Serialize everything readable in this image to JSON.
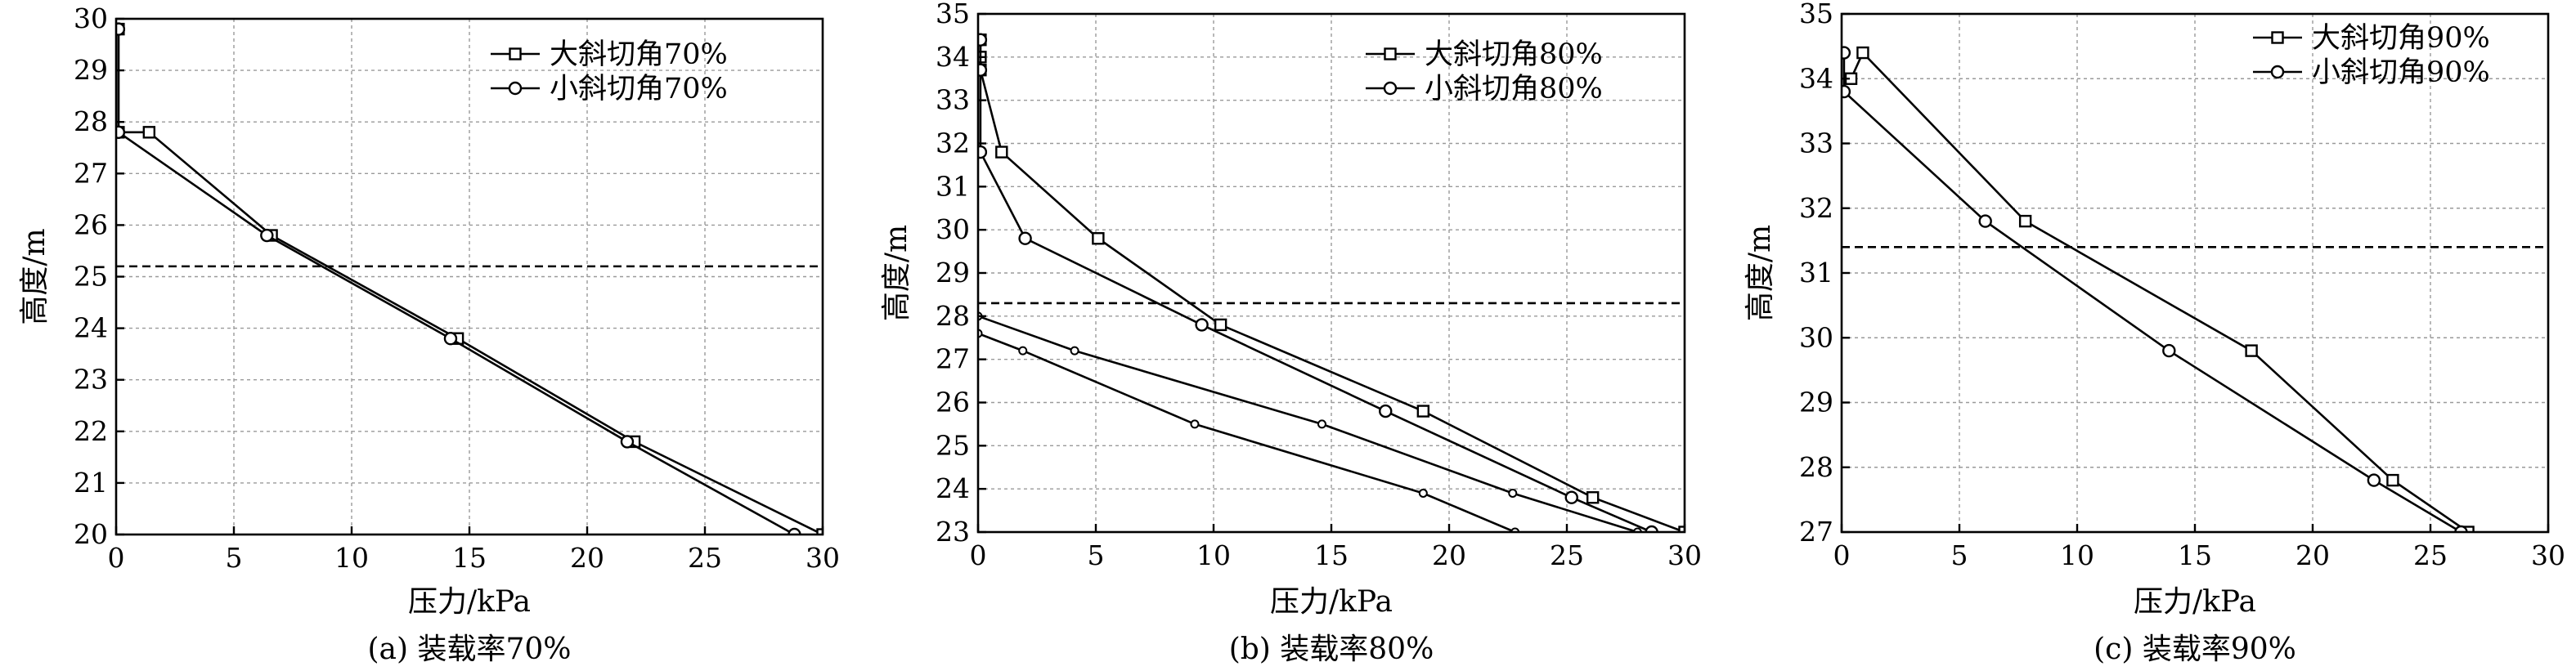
{
  "chart_data": [
    {
      "type": "line",
      "caption": "(a) 装载率70%",
      "xlabel": "压力/kPa",
      "ylabel": "高度/m",
      "xlim": [
        0,
        30
      ],
      "ylim": [
        20,
        30
      ],
      "xticks": [
        0,
        5,
        10,
        15,
        20,
        25,
        30
      ],
      "yticks": [
        20,
        21,
        22,
        23,
        24,
        25,
        26,
        27,
        28,
        29,
        30
      ],
      "grid": true,
      "legend": "top-right",
      "reference_line": {
        "y": 25.2,
        "style": "dashed"
      },
      "series": [
        {
          "name": "大斜切角70%",
          "marker": "square",
          "x": [
            0.1,
            0.1,
            1.4,
            6.6,
            14.5,
            22.0,
            30.0
          ],
          "y": [
            29.8,
            27.8,
            27.8,
            25.8,
            23.8,
            21.8,
            20.0
          ]
        },
        {
          "name": "小斜切角70%",
          "marker": "circle",
          "x": [
            0.1,
            0.1,
            6.4,
            14.2,
            21.7,
            28.8
          ],
          "y": [
            29.8,
            27.8,
            25.8,
            23.8,
            21.8,
            20.0
          ]
        }
      ]
    },
    {
      "type": "line",
      "caption": "(b) 装载率80%",
      "xlabel": "压力/kPa",
      "ylabel": "高度/m",
      "xlim": [
        0,
        30
      ],
      "ylim": [
        23,
        35
      ],
      "xticks": [
        0,
        5,
        10,
        15,
        20,
        25,
        30
      ],
      "yticks": [
        23,
        24,
        25,
        26,
        27,
        28,
        29,
        30,
        31,
        32,
        33,
        34,
        35
      ],
      "grid": true,
      "legend": "top-right",
      "reference_line": {
        "y": 28.3,
        "style": "dashed"
      },
      "series": [
        {
          "name": "大斜切角80%",
          "marker": "square",
          "x": [
            0.1,
            0.1,
            0.1,
            1.0,
            5.1,
            10.3,
            18.9,
            26.1,
            30.0
          ],
          "y": [
            34.4,
            34.0,
            33.7,
            31.8,
            29.8,
            27.8,
            25.8,
            23.8,
            23.0
          ]
        },
        {
          "name": "小斜切角80%",
          "marker": "circle",
          "x": [
            0.1,
            0.1,
            0.1,
            2.0,
            9.5,
            17.3,
            25.2,
            28.6
          ],
          "y": [
            34.4,
            33.7,
            31.8,
            29.8,
            27.8,
            25.8,
            23.8,
            23.0
          ]
        },
        {
          "name": "",
          "marker": "dot",
          "x": [
            0.0,
            4.1,
            14.6,
            22.7,
            28.0
          ],
          "y": [
            28.0,
            27.2,
            25.5,
            23.9,
            23.0
          ]
        },
        {
          "name": "",
          "marker": "dot",
          "x": [
            0.0,
            1.9,
            9.2,
            18.9,
            22.8
          ],
          "y": [
            27.6,
            27.2,
            25.5,
            23.9,
            23.0
          ]
        }
      ]
    },
    {
      "type": "line",
      "caption": "(c) 装载率90%",
      "xlabel": "压力/kPa",
      "ylabel": "高度/m",
      "xlim": [
        0,
        30
      ],
      "ylim": [
        27,
        35
      ],
      "xticks": [
        0,
        5,
        10,
        15,
        20,
        25,
        30
      ],
      "yticks": [
        27,
        28,
        29,
        30,
        31,
        32,
        33,
        34,
        35
      ],
      "grid": true,
      "legend": "top-right",
      "reference_line": {
        "y": 31.4,
        "style": "dashed"
      },
      "series": [
        {
          "name": "大斜切角90%",
          "marker": "square",
          "x": [
            0.4,
            0.9,
            7.8,
            17.4,
            23.4,
            26.6
          ],
          "y": [
            34.0,
            34.4,
            31.8,
            29.8,
            27.8,
            27.0
          ]
        },
        {
          "name": "小斜切角90%",
          "marker": "circle",
          "x": [
            0.1,
            0.1,
            6.1,
            13.9,
            22.6,
            26.3
          ],
          "y": [
            34.4,
            33.8,
            31.8,
            29.8,
            27.8,
            27.0
          ]
        }
      ]
    }
  ]
}
